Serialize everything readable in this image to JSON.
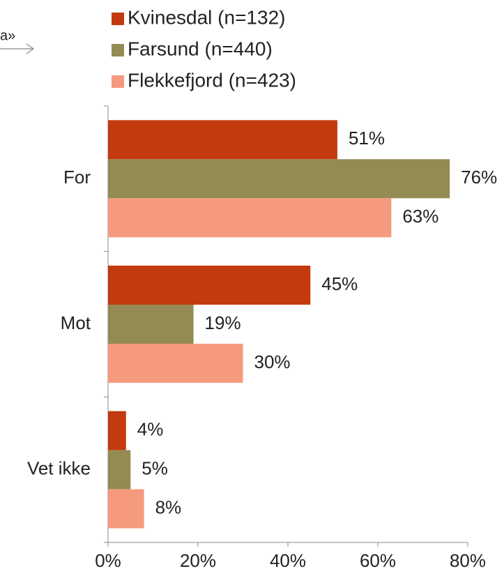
{
  "chart_data": {
    "type": "bar",
    "orientation": "horizontal",
    "annotation": "a»",
    "categories": [
      "For",
      "Mot",
      "Vet ikke"
    ],
    "series": [
      {
        "name": "Kvinesdal (n=132)",
        "color": "#c33a0e",
        "values": [
          51,
          45,
          4
        ],
        "value_labels": [
          "51%",
          "45%",
          "4%"
        ]
      },
      {
        "name": "Farsund (n=440)",
        "color": "#948b54",
        "values": [
          76,
          19,
          5
        ],
        "value_labels": [
          "76%",
          "19%",
          "5%"
        ]
      },
      {
        "name": "Flekkefjord (n=423)",
        "color": "#f59a7e",
        "values": [
          63,
          30,
          8
        ],
        "value_labels": [
          "63%",
          "30%",
          "8%"
        ]
      }
    ],
    "xlim": [
      0,
      80
    ],
    "xticks": [
      {
        "value": 0,
        "label": "0%"
      },
      {
        "value": 20,
        "label": "20%"
      },
      {
        "value": 40,
        "label": "40%"
      },
      {
        "value": 60,
        "label": "60%"
      },
      {
        "value": 80,
        "label": "80%"
      }
    ],
    "legend": "top"
  }
}
